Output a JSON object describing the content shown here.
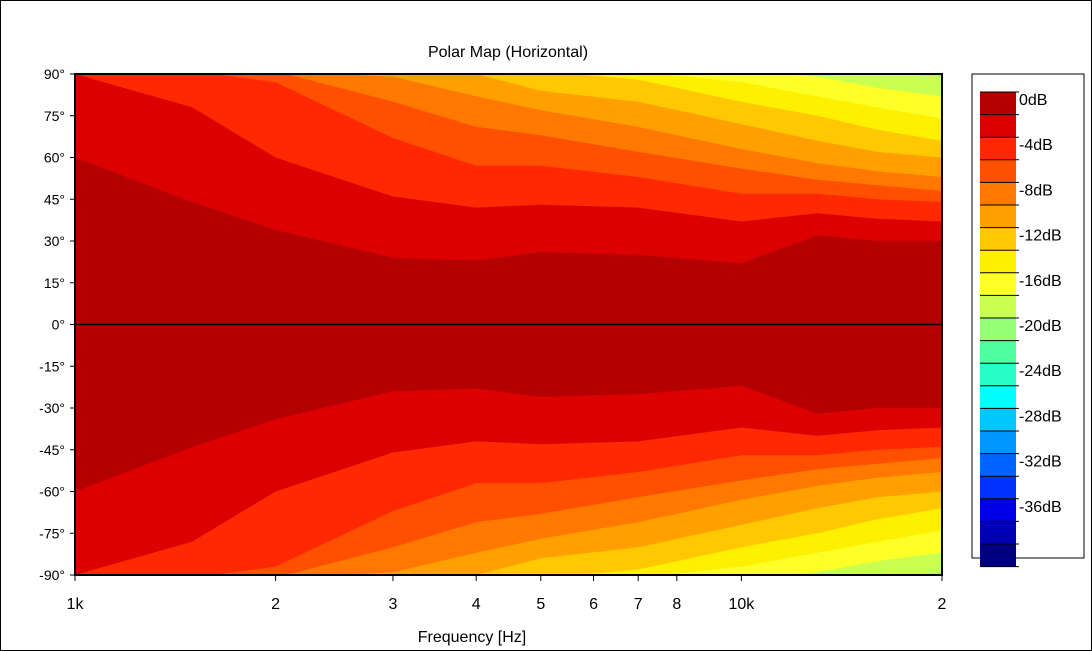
{
  "chart_data": {
    "type": "heatmap",
    "title": "Polar Map (Horizontal)",
    "xlabel": "Frequency [Hz]",
    "ylabel": "",
    "x_scale": "log",
    "xlim": [
      1000,
      20000
    ],
    "ylim": [
      -90,
      90
    ],
    "x_ticks": [
      {
        "value": 1000,
        "label": "1k"
      },
      {
        "value": 2000,
        "label": "2"
      },
      {
        "value": 3000,
        "label": "3"
      },
      {
        "value": 4000,
        "label": "4"
      },
      {
        "value": 5000,
        "label": "5"
      },
      {
        "value": 6000,
        "label": "6"
      },
      {
        "value": 7000,
        "label": "7"
      },
      {
        "value": 8000,
        "label": "8"
      },
      {
        "value": 10000,
        "label": "10k"
      },
      {
        "value": 20000,
        "label": "2"
      }
    ],
    "y_ticks": [
      {
        "value": 90,
        "label": "90°"
      },
      {
        "value": 75,
        "label": "75°"
      },
      {
        "value": 60,
        "label": "60°"
      },
      {
        "value": 45,
        "label": "45°"
      },
      {
        "value": 30,
        "label": "30°"
      },
      {
        "value": 15,
        "label": "15°"
      },
      {
        "value": 0,
        "label": "0°"
      },
      {
        "value": -15,
        "label": "-15°"
      },
      {
        "value": -30,
        "label": "-30°"
      },
      {
        "value": -45,
        "label": "-45°"
      },
      {
        "value": -60,
        "label": "-60°"
      },
      {
        "value": -75,
        "label": "-75°"
      },
      {
        "value": -90,
        "label": "-90°"
      }
    ],
    "contour_step_db": 2,
    "boundary_frequencies_hz": [
      1000,
      1500,
      2000,
      3000,
      4000,
      5000,
      7000,
      10000,
      13000,
      16000,
      20000
    ],
    "contour_boundaries_deg": [
      {
        "db": -2,
        "angles": [
          60,
          44,
          34,
          24,
          23,
          26,
          25,
          22,
          32,
          30,
          30
        ]
      },
      {
        "db": -4,
        "angles": [
          90,
          78,
          60,
          46,
          42,
          43,
          42,
          37,
          40,
          38,
          37
        ]
      },
      {
        "db": -6,
        "angles": [
          91,
          91,
          87,
          67,
          57,
          57,
          53,
          47,
          47,
          45,
          44
        ]
      },
      {
        "db": -8,
        "angles": [
          91,
          91,
          91,
          80,
          71,
          68,
          62,
          56,
          52,
          50,
          48
        ]
      },
      {
        "db": -10,
        "angles": [
          91,
          91,
          91,
          89,
          82,
          77,
          71,
          63,
          58,
          55,
          53
        ]
      },
      {
        "db": -12,
        "angles": [
          91,
          91,
          91,
          91,
          90,
          84,
          80,
          72,
          66,
          62,
          60
        ]
      },
      {
        "db": -14,
        "angles": [
          91,
          91,
          91,
          91,
          91,
          91,
          88,
          80,
          75,
          70,
          66
        ]
      },
      {
        "db": -16,
        "angles": [
          91,
          91,
          91,
          91,
          91,
          91,
          91,
          87,
          82,
          78,
          74
        ]
      },
      {
        "db": -18,
        "angles": [
          91,
          91,
          91,
          91,
          91,
          91,
          91,
          91,
          89,
          85,
          82
        ]
      },
      {
        "db": -20,
        "angles": [
          91,
          91,
          91,
          91,
          91,
          91,
          91,
          91,
          91,
          91,
          89
        ]
      }
    ],
    "legend": {
      "placement": "right",
      "labels": [
        "0dB",
        "-4dB",
        "-8dB",
        "-12dB",
        "-16dB",
        "-20dB",
        "-24dB",
        "-28dB",
        "-32dB",
        "-36dB"
      ],
      "colors": [
        "#b40000",
        "#dc0000",
        "#ff2800",
        "#ff5000",
        "#ff7800",
        "#ffa000",
        "#ffc800",
        "#fff000",
        "#ffff28",
        "#c8ff50",
        "#96ff78",
        "#50ffa0",
        "#28ffc8",
        "#00ffff",
        "#00c8ff",
        "#0096ff",
        "#0064ff",
        "#0032ff",
        "#0000e6",
        "#0000b4",
        "#000080"
      ]
    },
    "reference_line": {
      "value": 0,
      "color": "#000000"
    }
  }
}
